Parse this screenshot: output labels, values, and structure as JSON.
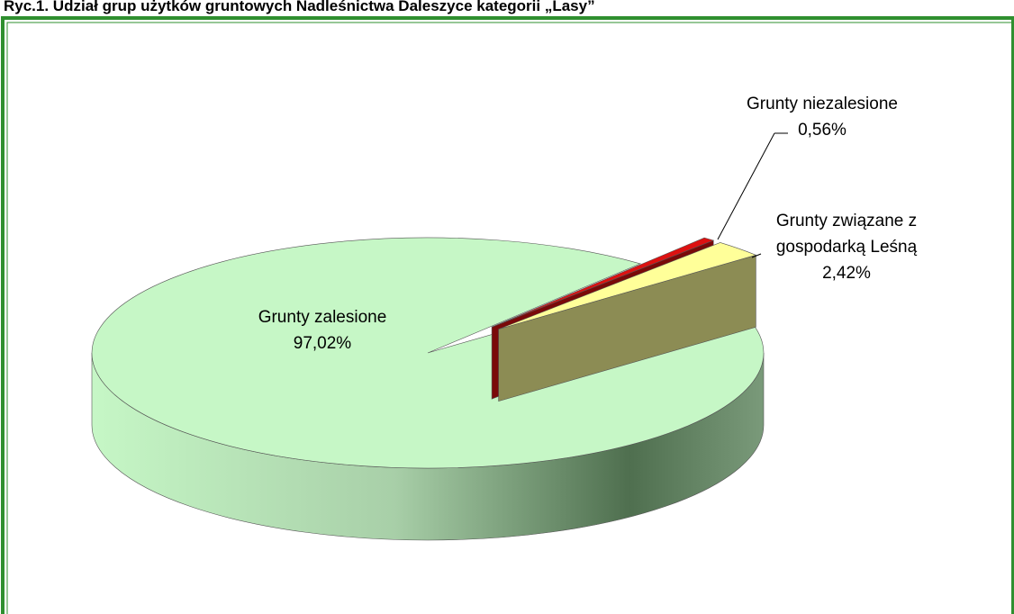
{
  "chart_data": {
    "type": "pie3d",
    "title": "Ryc.1. Udział grup użytków gruntowych Nadleśnictwa Daleszyce kategorii „Lasy”",
    "categories": [
      "Grunty zalesione",
      "Grunty niezalesione",
      "Grunty związane z gospodarką Leśną"
    ],
    "values": [
      97.02,
      0.56,
      2.42
    ],
    "value_labels": [
      "97,02%",
      "0,56%",
      "2,42%"
    ],
    "colors": [
      "#c6f7c6",
      "#dd1111",
      "#ffff99"
    ]
  }
}
